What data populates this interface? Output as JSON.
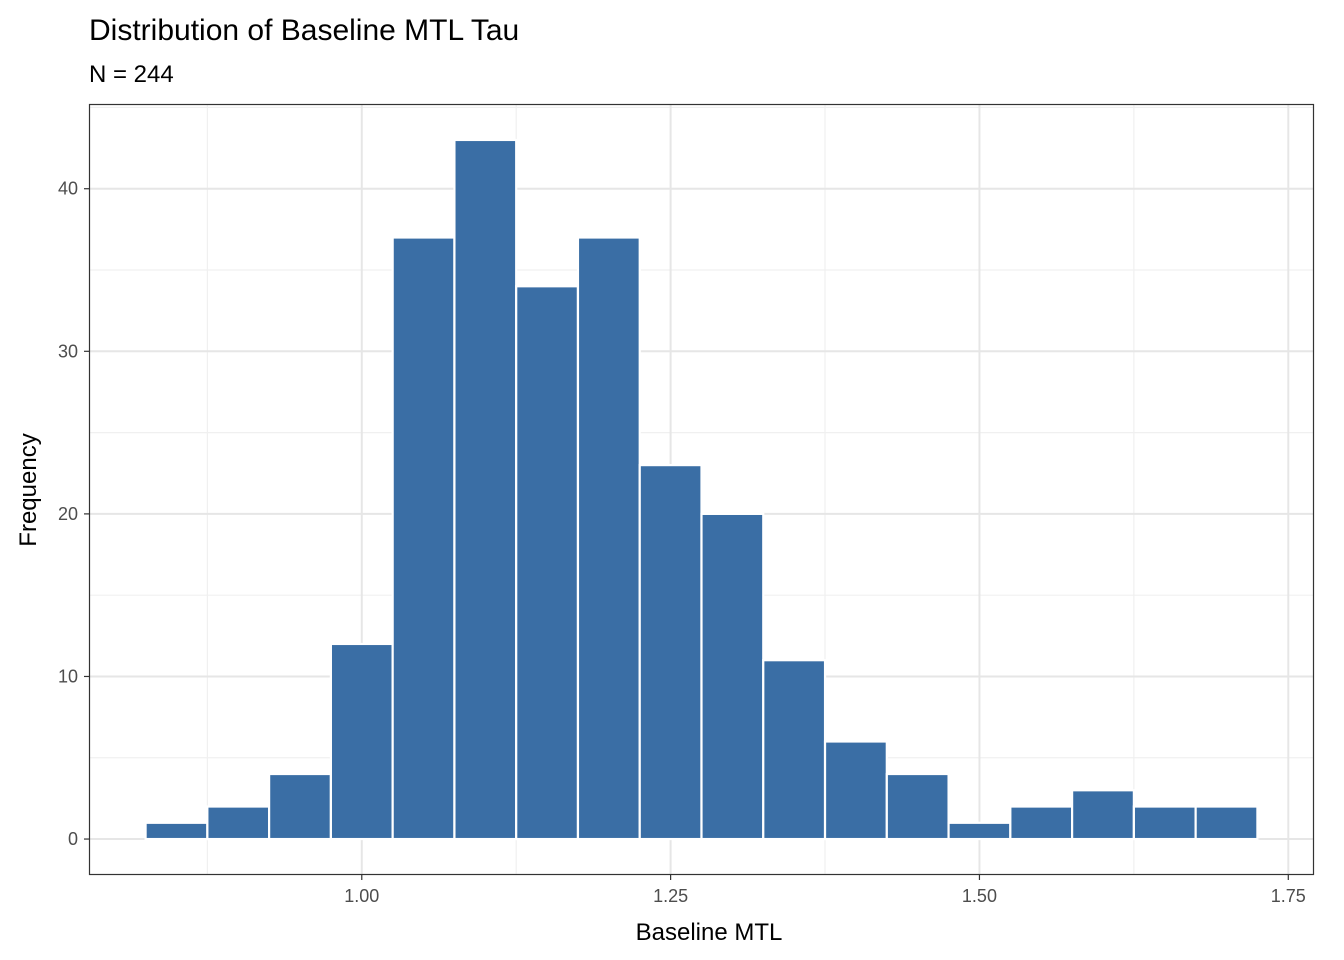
{
  "chart_data": {
    "type": "bar",
    "title": "Distribution of Baseline MTL Tau",
    "subtitle": "N = 244",
    "xlabel": "Baseline MTL",
    "ylabel": "Frequency",
    "bin_width": 0.05,
    "bins": [
      {
        "x0": 0.825,
        "x1": 0.875,
        "count": 1
      },
      {
        "x0": 0.875,
        "x1": 0.925,
        "count": 2
      },
      {
        "x0": 0.925,
        "x1": 0.975,
        "count": 4
      },
      {
        "x0": 0.975,
        "x1": 1.025,
        "count": 12
      },
      {
        "x0": 1.025,
        "x1": 1.075,
        "count": 37
      },
      {
        "x0": 1.075,
        "x1": 1.125,
        "count": 43
      },
      {
        "x0": 1.125,
        "x1": 1.175,
        "count": 34
      },
      {
        "x0": 1.175,
        "x1": 1.225,
        "count": 37
      },
      {
        "x0": 1.225,
        "x1": 1.275,
        "count": 23
      },
      {
        "x0": 1.275,
        "x1": 1.325,
        "count": 20
      },
      {
        "x0": 1.325,
        "x1": 1.375,
        "count": 11
      },
      {
        "x0": 1.375,
        "x1": 1.425,
        "count": 6
      },
      {
        "x0": 1.425,
        "x1": 1.475,
        "count": 4
      },
      {
        "x0": 1.475,
        "x1": 1.525,
        "count": 1
      },
      {
        "x0": 1.525,
        "x1": 1.575,
        "count": 2
      },
      {
        "x0": 1.575,
        "x1": 1.625,
        "count": 3
      },
      {
        "x0": 1.625,
        "x1": 1.675,
        "count": 2
      },
      {
        "x0": 1.675,
        "x1": 1.725,
        "count": 2
      }
    ],
    "x_ticks": [
      "1.00",
      "1.25",
      "1.50",
      "1.75"
    ],
    "y_ticks": [
      "0",
      "10",
      "20",
      "30",
      "40"
    ],
    "xlim": [
      0.78,
      1.77
    ],
    "ylim": [
      -2.15,
      45.15
    ],
    "grid": true,
    "bar_color": "#3A6EA5",
    "bar_outline_color": "#ffffff"
  }
}
